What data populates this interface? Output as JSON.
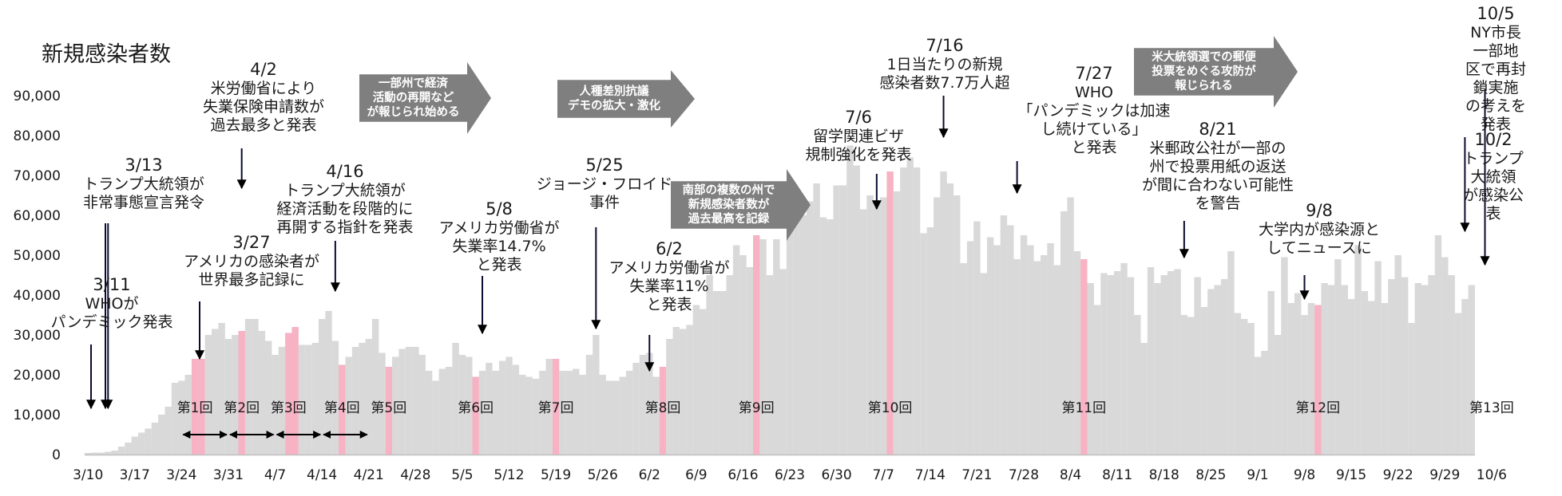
{
  "chart_data": {
    "type": "bar",
    "title": "新規感染者数",
    "ylim": [
      0,
      90000
    ],
    "y_ticks": [
      "0",
      "10,000",
      "20,000",
      "30,000",
      "40,000",
      "50,000",
      "60,000",
      "70,000",
      "80,000",
      "90,000"
    ],
    "x_ticks": [
      "3/10",
      "3/17",
      "3/24",
      "3/31",
      "4/7",
      "4/14",
      "4/21",
      "4/28",
      "5/5",
      "5/12",
      "5/19",
      "5/26",
      "6/2",
      "6/9",
      "6/16",
      "6/23",
      "6/30",
      "7/7",
      "7/14",
      "7/21",
      "7/28",
      "8/4",
      "8/11",
      "8/18",
      "8/25",
      "9/1",
      "9/8",
      "9/15",
      "9/22",
      "9/29",
      "10/6"
    ],
    "start_date": "3/10",
    "values": [
      400,
      500,
      500,
      700,
      1000,
      2000,
      3000,
      4500,
      5500,
      6500,
      8000,
      10000,
      12000,
      18000,
      18500,
      20000,
      24000,
      24000,
      30000,
      31500,
      33000,
      29000,
      30000,
      31000,
      34000,
      34000,
      31000,
      28500,
      25000,
      27000,
      30500,
      32000,
      27500,
      27500,
      28000,
      34000,
      36000,
      28500,
      22500,
      24500,
      27000,
      28000,
      29000,
      34000,
      25500,
      22000,
      24500,
      26500,
      27000,
      27000,
      25000,
      21000,
      18500,
      21500,
      22000,
      28000,
      25000,
      24500,
      19500,
      21000,
      23000,
      21000,
      23500,
      24500,
      22500,
      20000,
      19500,
      19000,
      21000,
      24000,
      24000,
      21000,
      21000,
      21500,
      20000,
      25000,
      30000,
      20000,
      18500,
      18500,
      19500,
      21000,
      23000,
      25000,
      25500,
      19500,
      22000,
      29000,
      32000,
      31500,
      32500,
      37500,
      36500,
      45000,
      41000,
      41000,
      45000,
      52500,
      50000,
      47000,
      55000,
      54000,
      45000,
      54000,
      46500,
      59000,
      63000,
      60000,
      63500,
      68000,
      59500,
      59000,
      67500,
      67500,
      77500,
      72500,
      61500,
      65000,
      63000,
      64500,
      71000,
      66000,
      72000,
      74500,
      72000,
      55500,
      57000,
      64500,
      71000,
      68000,
      65000,
      48000,
      53500,
      58500,
      45500,
      54500,
      52500,
      60000,
      57500,
      49000,
      55000,
      52500,
      48500,
      50000,
      53000,
      47500,
      61000,
      64500,
      51000,
      49000,
      43000,
      37500,
      45500,
      45000,
      46000,
      48000,
      44500,
      35000,
      28000,
      47000,
      43000,
      45000,
      46000,
      46500,
      35000,
      34500,
      44500,
      37000,
      41500,
      42500,
      44000,
      51000,
      35500,
      34000,
      33000,
      24500,
      26000,
      41000,
      30000,
      49500,
      38000,
      40500,
      35000,
      38000,
      37500,
      43000,
      42500,
      49000,
      42500,
      39000,
      52500,
      41000,
      38500,
      48500,
      38000,
      44000,
      50000,
      44500,
      33000,
      43000,
      42500,
      45000,
      55000,
      49500,
      45000,
      35500,
      39000,
      42500
    ],
    "highlighted": [
      "3/26",
      "3/27",
      "4/2",
      "4/9",
      "4/10",
      "4/17",
      "4/24",
      "5/7",
      "5/19",
      "6/4",
      "6/18",
      "7/8",
      "8/6",
      "9/10",
      "10/6"
    ],
    "colors": {
      "bar": "#d9d9d9",
      "highlight": "#f7b2c4",
      "arrow": "#000000",
      "banner": "#7f7f7f",
      "axis": "#c0c0c0"
    }
  },
  "rounds": [
    {
      "label": "第1回",
      "date": "3/26"
    },
    {
      "label": "第2回",
      "date": "4/2"
    },
    {
      "label": "第3回",
      "date": "4/9"
    },
    {
      "label": "第4回",
      "date": "4/17"
    },
    {
      "label": "第5回",
      "date": "4/24"
    },
    {
      "label": "第6回",
      "date": "5/7"
    },
    {
      "label": "第7回",
      "date": "5/19"
    },
    {
      "label": "第8回",
      "date": "6/4"
    },
    {
      "label": "第9回",
      "date": "6/18"
    },
    {
      "label": "第10回",
      "date": "7/8"
    },
    {
      "label": "第11回",
      "date": "8/6"
    },
    {
      "label": "第12回",
      "date": "9/10"
    },
    {
      "label": "第13回",
      "date": "10/6"
    }
  ],
  "week_spans": [
    {
      "from": "3/24",
      "to": "3/31"
    },
    {
      "from": "3/31",
      "to": "4/7"
    },
    {
      "from": "4/7",
      "to": "4/14"
    },
    {
      "from": "4/14",
      "to": "4/21"
    }
  ],
  "annotations": [
    {
      "date": "3/11",
      "text": "WHOが\nパンデミック発表",
      "arrow_date": "3/11"
    },
    {
      "date": "3/13",
      "text": "トランプ大統領が\n非常事態宣言発令",
      "arrow_date": "3/13"
    },
    {
      "date": "4/2",
      "text": "米労働省により\n失業保険申請数が\n過去最多と発表",
      "arrow_date": "4/2"
    },
    {
      "date": "3/27",
      "text": "アメリカの感染者が\n世界最多記録に",
      "arrow_date": "3/27"
    },
    {
      "date": "4/16",
      "text": "トランプ大統領が\n経済活動を段階的に\n再開する指針を発表",
      "arrow_date": "4/16"
    },
    {
      "date": "5/8",
      "text": "アメリカ労働省が\n失業率14.7%\nと発表",
      "arrow_date": "5/8"
    },
    {
      "date": "5/25",
      "text": "ジョージ・フロイド\n事件",
      "arrow_date": "5/25"
    },
    {
      "date": "6/2",
      "text": "アメリカ労働省が\n失業率11%\nと発表",
      "arrow_date": "6/2"
    },
    {
      "date": "7/6",
      "text": "留学関連ビザ\n規制強化を発表",
      "arrow_date": "7/6"
    },
    {
      "date": "7/16",
      "text": "1日当たりの新規\n感染者数7.7万人超",
      "arrow_date": "7/16"
    },
    {
      "date": "7/27",
      "text": "WHO\n「パンデミックは加速\nし続けている」\nと発表",
      "arrow_date": "7/27"
    },
    {
      "date": "8/21",
      "text": "米郵政公社が一部の\n州で投票用紙の返送\nが間に合わない可能性\nを警告",
      "arrow_date": "8/21"
    },
    {
      "date": "9/8",
      "text": "大学内が感染源と\nしてニュースに",
      "arrow_date": "9/8"
    },
    {
      "date": "10/2",
      "text": "トランプ大統領\nが感染公表",
      "arrow_date": "10/2"
    },
    {
      "date": "10/5",
      "text": "NY市長 一部地\n区で再封鎖実施\nの考えを発表",
      "arrow_date": "10/5"
    }
  ],
  "banners": [
    {
      "text": "一部州で経済\n活動の再開など\nが報じられ始める"
    },
    {
      "text": "人種差別抗議\nデモの拡大・激化"
    },
    {
      "text": "南部の複数の州で\n新規感染者数が\n過去最高を記録"
    },
    {
      "text": "米大統領選での郵便\n投票をめぐる攻防が\n報じられる"
    }
  ]
}
